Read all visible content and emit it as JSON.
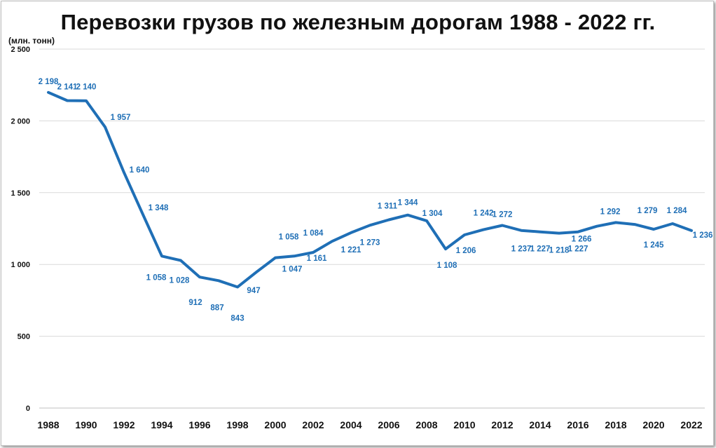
{
  "chart_data": {
    "type": "line",
    "title": "Перевозки грузов по железным дорогам 1988 - 2022 гг.",
    "ylabel": "(млн. тонн)",
    "xlabel": "",
    "x": [
      1988,
      1989,
      1990,
      1991,
      1992,
      1993,
      1994,
      1995,
      1996,
      1997,
      1998,
      1999,
      2000,
      2001,
      2002,
      2003,
      2004,
      2005,
      2006,
      2007,
      2008,
      2009,
      2010,
      2011,
      2012,
      2013,
      2014,
      2015,
      2016,
      2017,
      2018,
      2019,
      2020,
      2021,
      2022
    ],
    "values": [
      2198,
      2141,
      2140,
      1957,
      1640,
      1348,
      1058,
      1028,
      912,
      887,
      843,
      947,
      1047,
      1058,
      1084,
      1161,
      1221,
      1273,
      1311,
      1344,
      1304,
      1108,
      1206,
      1242,
      1272,
      1237,
      1227,
      1218,
      1227,
      1266,
      1292,
      1279,
      1245,
      1284,
      1236
    ],
    "data_labels": [
      "2 198",
      "2 141",
      "2 140",
      "1 957",
      "1 640",
      "1 348",
      "1 058",
      "1 028",
      "912",
      "887",
      "843",
      "947",
      "1 047",
      "1 058",
      "1 084",
      "1 161",
      "1 221",
      "1 273",
      "1 311",
      "1 344",
      "1 304",
      "1 108",
      "1 206",
      "1 242",
      "1 272",
      "1 237",
      "1 227",
      "1 218",
      "1 227",
      "1 266",
      "1 292",
      "1 279",
      "1 245",
      "1 284",
      "1 236"
    ],
    "ylim": [
      0,
      2500
    ],
    "yticks": [
      0,
      500,
      1000,
      1500,
      2000,
      2500
    ],
    "ytick_labels": [
      "0",
      "500",
      "1 000",
      "1 500",
      "2 000",
      "2 500"
    ],
    "xtick_labels": [
      "1988",
      "1990",
      "1992",
      "1994",
      "1996",
      "1998",
      "2000",
      "2002",
      "2004",
      "2006",
      "2008",
      "2010",
      "2012",
      "2014",
      "2016",
      "2018",
      "2020",
      "2022"
    ],
    "grid": true,
    "colors": {
      "line": "#1f6fb6",
      "labels": "#1f6fb6",
      "grid": "#d9d9d9",
      "axis_text": "#111111"
    }
  }
}
